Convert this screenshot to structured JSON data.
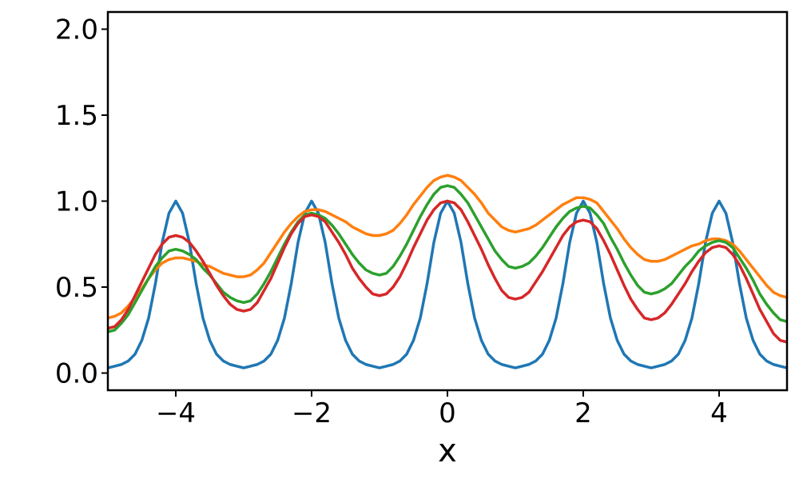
{
  "chart_data": {
    "type": "line",
    "x_label": "x",
    "x": [
      -5,
      -4.9,
      -4.8,
      -4.7,
      -4.6,
      -4.5,
      -4.4,
      -4.3,
      -4.2,
      -4.1,
      -4,
      -3.9,
      -3.8,
      -3.7,
      -3.6,
      -3.5,
      -3.4,
      -3.3,
      -3.2,
      -3.1,
      -3,
      -2.9,
      -2.8,
      -2.7,
      -2.6,
      -2.5,
      -2.4,
      -2.3,
      -2.2,
      -2.1,
      -2,
      -1.9,
      -1.8,
      -1.7,
      -1.6,
      -1.5,
      -1.4,
      -1.3,
      -1.2,
      -1.1,
      -1,
      -0.9,
      -0.8,
      -0.7,
      -0.6,
      -0.5,
      -0.4,
      -0.3,
      -0.2,
      -0.1,
      0,
      0.1,
      0.2,
      0.3,
      0.4,
      0.5,
      0.6,
      0.7,
      0.8,
      0.9,
      1,
      1.1,
      1.2,
      1.3,
      1.4,
      1.5,
      1.6,
      1.7,
      1.8,
      1.9,
      2,
      2.1,
      2.2,
      2.3,
      2.4,
      2.5,
      2.6,
      2.7,
      2.8,
      2.9,
      3,
      3.1,
      3.2,
      3.3,
      3.4,
      3.5,
      3.6,
      3.7,
      3.8,
      3.9,
      4,
      4.1,
      4.2,
      4.3,
      4.4,
      4.5,
      4.6,
      4.7,
      4.8,
      4.9,
      5
    ],
    "series": [
      {
        "color": "#1f77b4",
        "values": [
          0.03,
          0.04,
          0.05,
          0.07,
          0.11,
          0.19,
          0.32,
          0.52,
          0.76,
          0.93,
          1.0,
          0.93,
          0.76,
          0.52,
          0.32,
          0.19,
          0.11,
          0.07,
          0.05,
          0.04,
          0.03,
          0.04,
          0.05,
          0.07,
          0.11,
          0.19,
          0.32,
          0.52,
          0.76,
          0.93,
          1.0,
          0.93,
          0.76,
          0.52,
          0.32,
          0.19,
          0.11,
          0.07,
          0.05,
          0.04,
          0.03,
          0.04,
          0.05,
          0.07,
          0.11,
          0.19,
          0.32,
          0.52,
          0.76,
          0.93,
          1.0,
          0.93,
          0.76,
          0.52,
          0.32,
          0.19,
          0.11,
          0.07,
          0.05,
          0.04,
          0.03,
          0.04,
          0.05,
          0.07,
          0.11,
          0.19,
          0.32,
          0.52,
          0.76,
          0.93,
          1.0,
          0.93,
          0.76,
          0.52,
          0.32,
          0.19,
          0.11,
          0.07,
          0.05,
          0.04,
          0.03,
          0.04,
          0.05,
          0.07,
          0.11,
          0.19,
          0.32,
          0.52,
          0.76,
          0.93,
          1.0,
          0.93,
          0.76,
          0.52,
          0.32,
          0.19,
          0.11,
          0.07,
          0.05,
          0.04,
          0.03
        ]
      },
      {
        "color": "#ff7f0e",
        "values": [
          0.32,
          0.33,
          0.35,
          0.39,
          0.44,
          0.49,
          0.55,
          0.6,
          0.64,
          0.66,
          0.67,
          0.67,
          0.66,
          0.65,
          0.63,
          0.62,
          0.6,
          0.58,
          0.57,
          0.56,
          0.56,
          0.57,
          0.6,
          0.64,
          0.7,
          0.76,
          0.82,
          0.87,
          0.91,
          0.94,
          0.95,
          0.95,
          0.94,
          0.92,
          0.9,
          0.88,
          0.85,
          0.83,
          0.81,
          0.8,
          0.8,
          0.81,
          0.83,
          0.87,
          0.92,
          0.98,
          1.03,
          1.08,
          1.12,
          1.14,
          1.15,
          1.14,
          1.12,
          1.08,
          1.04,
          0.99,
          0.93,
          0.89,
          0.85,
          0.83,
          0.82,
          0.83,
          0.84,
          0.86,
          0.89,
          0.92,
          0.95,
          0.98,
          1.0,
          1.02,
          1.02,
          1.01,
          0.99,
          0.94,
          0.89,
          0.84,
          0.78,
          0.73,
          0.69,
          0.66,
          0.65,
          0.65,
          0.66,
          0.68,
          0.7,
          0.72,
          0.74,
          0.75,
          0.77,
          0.78,
          0.78,
          0.77,
          0.75,
          0.71,
          0.66,
          0.61,
          0.56,
          0.51,
          0.47,
          0.45,
          0.44
        ]
      },
      {
        "color": "#2ca02c",
        "values": [
          0.24,
          0.25,
          0.29,
          0.34,
          0.41,
          0.48,
          0.55,
          0.62,
          0.67,
          0.71,
          0.72,
          0.71,
          0.69,
          0.66,
          0.61,
          0.57,
          0.52,
          0.47,
          0.44,
          0.42,
          0.41,
          0.42,
          0.46,
          0.52,
          0.59,
          0.67,
          0.75,
          0.82,
          0.88,
          0.92,
          0.93,
          0.92,
          0.9,
          0.86,
          0.81,
          0.75,
          0.69,
          0.64,
          0.6,
          0.58,
          0.57,
          0.58,
          0.62,
          0.68,
          0.75,
          0.83,
          0.91,
          0.98,
          1.04,
          1.08,
          1.09,
          1.08,
          1.04,
          0.99,
          0.92,
          0.85,
          0.78,
          0.71,
          0.66,
          0.62,
          0.61,
          0.62,
          0.64,
          0.68,
          0.73,
          0.79,
          0.85,
          0.9,
          0.94,
          0.96,
          0.97,
          0.96,
          0.92,
          0.87,
          0.79,
          0.72,
          0.64,
          0.57,
          0.51,
          0.47,
          0.46,
          0.47,
          0.49,
          0.52,
          0.57,
          0.62,
          0.66,
          0.71,
          0.74,
          0.76,
          0.77,
          0.76,
          0.73,
          0.67,
          0.61,
          0.54,
          0.46,
          0.4,
          0.35,
          0.31,
          0.3
        ]
      },
      {
        "color": "#d62728",
        "values": [
          0.26,
          0.27,
          0.31,
          0.37,
          0.45,
          0.53,
          0.61,
          0.69,
          0.75,
          0.79,
          0.8,
          0.79,
          0.76,
          0.71,
          0.65,
          0.58,
          0.51,
          0.45,
          0.4,
          0.37,
          0.36,
          0.37,
          0.41,
          0.48,
          0.55,
          0.64,
          0.73,
          0.81,
          0.87,
          0.91,
          0.92,
          0.91,
          0.88,
          0.82,
          0.76,
          0.69,
          0.61,
          0.55,
          0.5,
          0.46,
          0.45,
          0.46,
          0.5,
          0.56,
          0.64,
          0.73,
          0.81,
          0.89,
          0.95,
          0.99,
          1.0,
          0.99,
          0.95,
          0.88,
          0.8,
          0.72,
          0.63,
          0.55,
          0.48,
          0.44,
          0.43,
          0.44,
          0.47,
          0.53,
          0.59,
          0.66,
          0.73,
          0.8,
          0.85,
          0.88,
          0.89,
          0.88,
          0.84,
          0.77,
          0.69,
          0.6,
          0.51,
          0.43,
          0.37,
          0.32,
          0.31,
          0.32,
          0.35,
          0.4,
          0.46,
          0.52,
          0.59,
          0.65,
          0.7,
          0.73,
          0.74,
          0.73,
          0.69,
          0.63,
          0.55,
          0.46,
          0.37,
          0.3,
          0.23,
          0.19,
          0.18
        ]
      }
    ],
    "xlim": [
      -5,
      5
    ],
    "ylim": [
      -0.1,
      2.1
    ],
    "xticks": [
      {
        "value": -4,
        "label": "−4"
      },
      {
        "value": -2,
        "label": "−2"
      },
      0,
      2,
      4
    ],
    "yticks": [
      {
        "value": 0,
        "label": "0.0"
      },
      0.5,
      {
        "value": 1,
        "label": "1.0"
      },
      1.5,
      {
        "value": 2,
        "label": "2.0"
      }
    ],
    "grid": false
  }
}
